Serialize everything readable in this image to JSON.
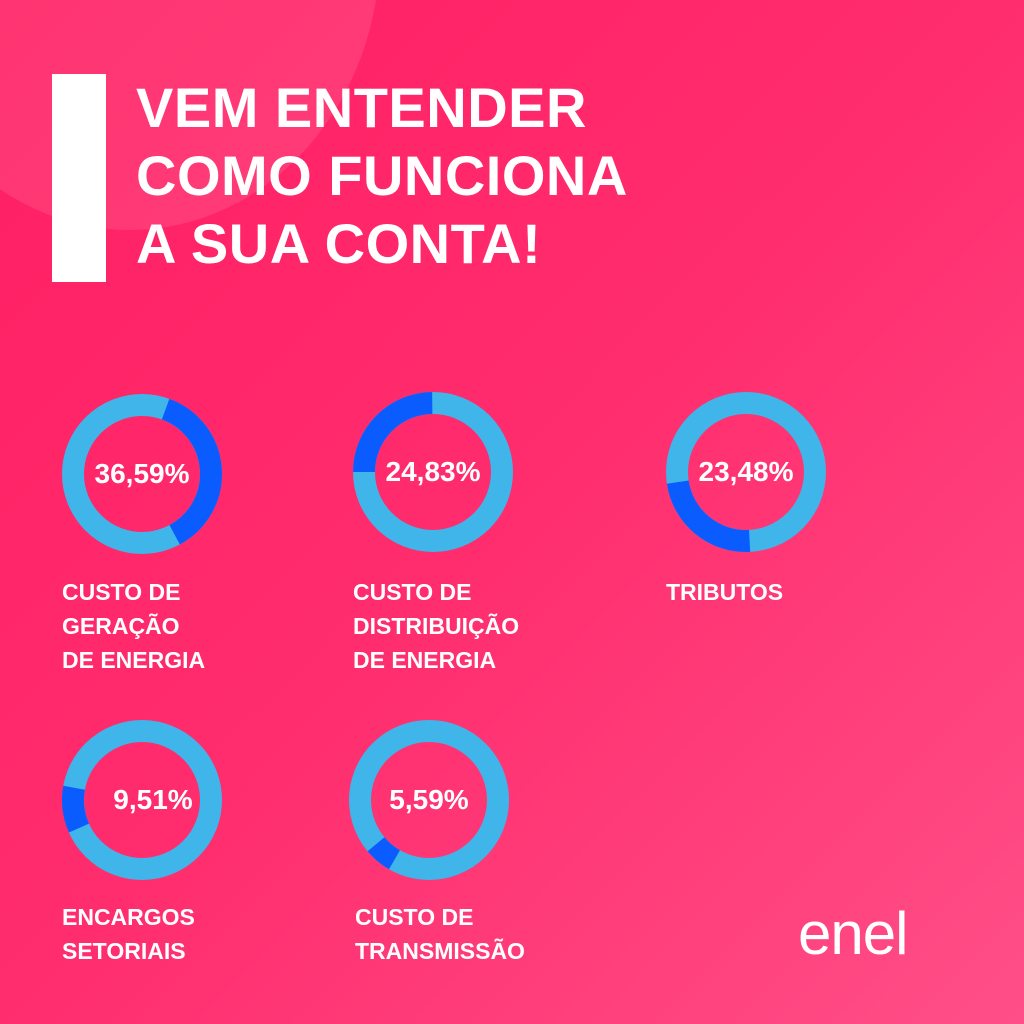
{
  "title": {
    "lines": [
      "VEM ENTENDER",
      "COMO FUNCIONA",
      "A SUA CONTA!"
    ]
  },
  "colors": {
    "background": "#ff2d6e",
    "ring_track": "#3fb5ea",
    "ring_value": "#0b5cff",
    "text": "#ffffff"
  },
  "chart_data": {
    "type": "pie",
    "categories": [
      "CUSTO DE GERAÇÃO DE ENERGIA",
      "CUSTO DE DISTRIBUIÇÃO DE ENERGIA",
      "TRIBUTOS",
      "ENCARGOS SETORIAIS",
      "CUSTO DE TRANSMISSÃO"
    ],
    "values": [
      36.59,
      24.83,
      23.48,
      9.51,
      5.59
    ],
    "items": [
      {
        "value": 36.59,
        "pct_label": "36,59%",
        "label": "CUSTO DE\nGERAÇÃO\nDE ENERGIA",
        "start_deg": 20
      },
      {
        "value": 24.83,
        "pct_label": "24,83%",
        "label": "CUSTO DE\nDISTRIBUIÇÃO\nDE ENERGIA",
        "start_deg": 270
      },
      {
        "value": 23.48,
        "pct_label": "23,48%",
        "label": "TRIBUTOS",
        "start_deg": 177
      },
      {
        "value": 9.51,
        "pct_label": "9,51%",
        "label": "ENCARGOS\nSETORIAIS",
        "start_deg": 246
      },
      {
        "value": 5.59,
        "pct_label": "5,59%",
        "label": "CUSTO DE\nTRANSMISSÃO",
        "start_deg": 210
      }
    ]
  },
  "logo": {
    "text": "enel"
  }
}
